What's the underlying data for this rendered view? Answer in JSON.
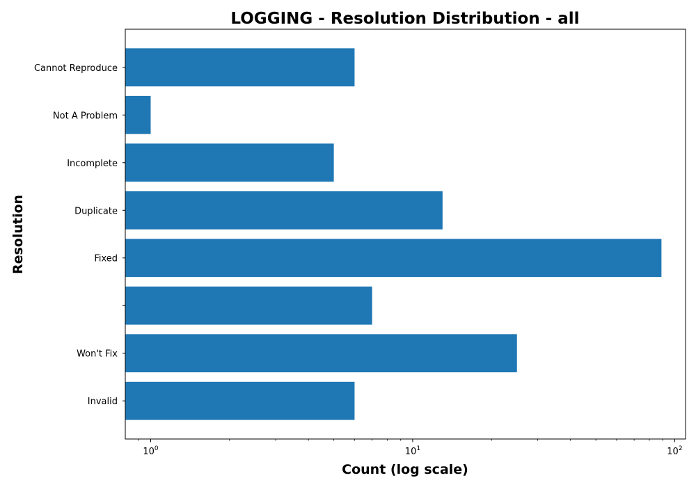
{
  "chart_data": {
    "type": "bar",
    "orientation": "horizontal",
    "title": "LOGGING - Resolution Distribution - all",
    "xlabel": "Count (log scale)",
    "ylabel": "Resolution",
    "x_scale": "log",
    "xlim": [
      0.8,
      110
    ],
    "x_ticks": [
      {
        "value": 1,
        "base": "10",
        "exp": "0"
      },
      {
        "value": 10,
        "base": "10",
        "exp": "1"
      },
      {
        "value": 100,
        "base": "10",
        "exp": "2"
      }
    ],
    "bar_color": "#1f77b4",
    "grid": false,
    "categories": [
      "Invalid",
      "Won't Fix",
      "",
      "Fixed",
      "Duplicate",
      "Incomplete",
      "Not A Problem",
      "Cannot Reproduce"
    ],
    "values": [
      6,
      25,
      7,
      89,
      13,
      5,
      1,
      6
    ]
  }
}
